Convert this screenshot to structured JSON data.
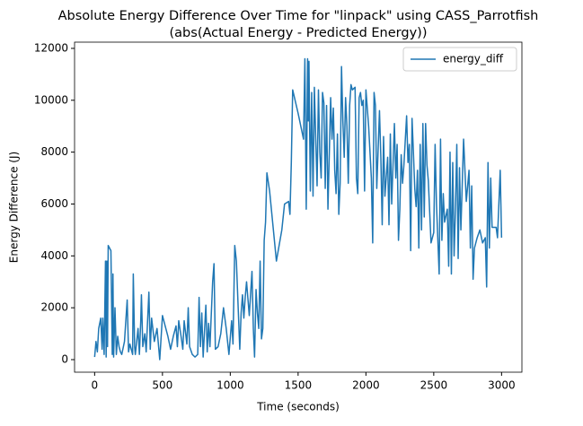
{
  "chart_data": {
    "type": "line",
    "title": "Absolute Energy Difference Over Time for \"linpack\" using CASS_Parrotfish",
    "subtitle": "(abs(Actual Energy - Predicted Energy))",
    "x_label": "Time (seconds)",
    "y_label": "Energy Difference (J)",
    "x": [
      0,
      10,
      20,
      30,
      45,
      55,
      60,
      70,
      80,
      85,
      90,
      95,
      100,
      120,
      130,
      135,
      140,
      150,
      160,
      170,
      180,
      190,
      200,
      220,
      240,
      250,
      260,
      280,
      285,
      295,
      300,
      320,
      330,
      340,
      345,
      355,
      370,
      380,
      400,
      410,
      420,
      440,
      460,
      480,
      500,
      520,
      540,
      560,
      580,
      600,
      610,
      620,
      640,
      650,
      660,
      680,
      690,
      700,
      720,
      740,
      760,
      770,
      780,
      790,
      800,
      820,
      830,
      840,
      850,
      870,
      880,
      890,
      910,
      930,
      950,
      970,
      990,
      1010,
      1020,
      1033,
      1045,
      1070,
      1080,
      1090,
      1100,
      1110,
      1120,
      1140,
      1160,
      1170,
      1179,
      1190,
      1200,
      1210,
      1220,
      1230,
      1240,
      1250,
      1260,
      1270,
      1290,
      1340,
      1380,
      1400,
      1430,
      1440,
      1450,
      1460,
      1500,
      1540,
      1550,
      1560,
      1570,
      1575,
      1580,
      1590,
      1600,
      1610,
      1620,
      1630,
      1640,
      1650,
      1660,
      1670,
      1680,
      1690,
      1700,
      1710,
      1720,
      1740,
      1750,
      1760,
      1770,
      1780,
      1790,
      1800,
      1810,
      1820,
      1830,
      1840,
      1850,
      1860,
      1870,
      1880,
      1890,
      1900,
      1920,
      1930,
      1940,
      1950,
      1960,
      1970,
      1980,
      1990,
      2000,
      2020,
      2040,
      2050,
      2060,
      2070,
      2080,
      2100,
      2110,
      2120,
      2130,
      2140,
      2160,
      2170,
      2180,
      2190,
      2210,
      2220,
      2230,
      2240,
      2250,
      2260,
      2270,
      2280,
      2300,
      2310,
      2320,
      2330,
      2340,
      2350,
      2360,
      2370,
      2380,
      2390,
      2400,
      2410,
      2420,
      2430,
      2440,
      2450,
      2460,
      2480,
      2500,
      2510,
      2520,
      2540,
      2550,
      2560,
      2570,
      2580,
      2600,
      2610,
      2620,
      2630,
      2640,
      2650,
      2660,
      2670,
      2680,
      2690,
      2700,
      2720,
      2740,
      2760,
      2770,
      2780,
      2790,
      2800,
      2820,
      2840,
      2860,
      2880,
      2890,
      2900,
      2910,
      2920,
      2930,
      2960,
      2970,
      2990,
      3000
    ],
    "series": [
      {
        "name": "energy_diff",
        "color": "#1f77b4",
        "values": [
          100,
          700,
          300,
          1200,
          1600,
          400,
          1600,
          200,
          3800,
          100,
          3800,
          500,
          4400,
          4200,
          200,
          3300,
          100,
          2000,
          200,
          900,
          500,
          300,
          200,
          700,
          2300,
          300,
          600,
          200,
          3300,
          500,
          200,
          1200,
          200,
          1500,
          2500,
          500,
          1000,
          300,
          2600,
          400,
          1600,
          700,
          1200,
          0,
          1700,
          1300,
          900,
          400,
          900,
          1300,
          500,
          1500,
          800,
          400,
          1500,
          600,
          2000,
          500,
          200,
          100,
          200,
          2400,
          500,
          1800,
          100,
          2100,
          300,
          1400,
          500,
          3000,
          3700,
          400,
          500,
          1000,
          2000,
          1200,
          200,
          1500,
          600,
          4400,
          3800,
          400,
          1800,
          2500,
          1600,
          2400,
          3000,
          1700,
          3400,
          1200,
          100,
          2700,
          1800,
          1200,
          3800,
          800,
          1200,
          4600,
          5300,
          7200,
          6500,
          3800,
          5000,
          6000,
          6100,
          5600,
          7600,
          10400,
          9500,
          8500,
          11600,
          5800,
          11600,
          9200,
          11500,
          6500,
          10300,
          6300,
          10500,
          8500,
          6700,
          10400,
          8000,
          7000,
          10300,
          9900,
          6600,
          9800,
          5800,
          10100,
          8500,
          9700,
          7300,
          6400,
          8700,
          5600,
          6800,
          11300,
          9200,
          7800,
          10100,
          9000,
          6800,
          9800,
          10600,
          10400,
          10500,
          7000,
          6400,
          10100,
          10300,
          9800,
          10000,
          6500,
          10400,
          9000,
          7000,
          4500,
          10300,
          9800,
          6600,
          9600,
          7800,
          5200,
          8600,
          6300,
          7800,
          5200,
          8700,
          6000,
          9100,
          7000,
          8300,
          4600,
          5800,
          7900,
          6800,
          7500,
          9400,
          7600,
          8300,
          4200,
          9300,
          8000,
          6600,
          5900,
          7300,
          4300,
          8300,
          5000,
          9100,
          5500,
          9100,
          7500,
          6900,
          4500,
          4900,
          8300,
          6000,
          3300,
          8500,
          4600,
          6400,
          5300,
          5800,
          3600,
          8000,
          3300,
          7600,
          4000,
          5800,
          8300,
          3900,
          7400,
          5000,
          8500,
          6100,
          7300,
          4300,
          6700,
          3100,
          4300,
          4700,
          5000,
          4500,
          4700,
          2800,
          7600,
          4300,
          7000,
          5100,
          5100,
          4700,
          7300,
          4700
        ]
      }
    ],
    "xlim": [
      -148,
      3150
    ],
    "ylim": [
      -484,
      12240
    ],
    "xticks": [
      0,
      500,
      1000,
      1500,
      2000,
      2500,
      3000
    ],
    "yticks": [
      0,
      2000,
      4000,
      6000,
      8000,
      10000,
      12000
    ],
    "legend": "upper right"
  }
}
